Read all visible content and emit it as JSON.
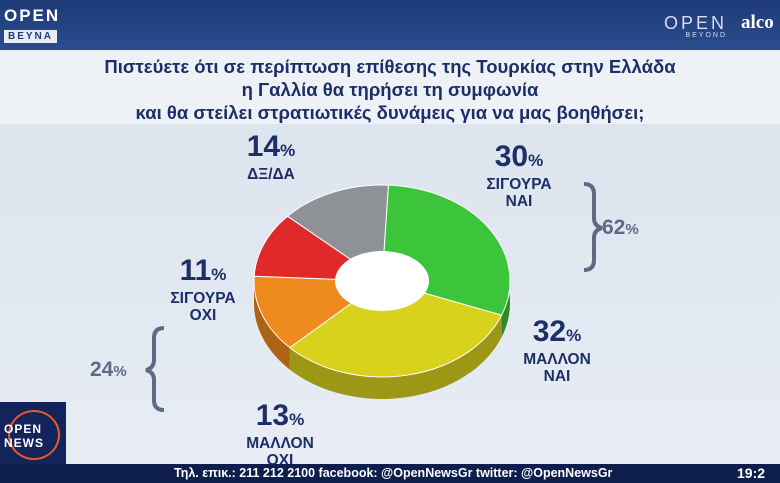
{
  "header": {
    "logo_left": {
      "word": "OPEN",
      "sub": "BEYNA"
    },
    "logo_right": {
      "word": "OPEN",
      "sub": "BEYOND"
    },
    "sponsor": "alco"
  },
  "question": {
    "line1": "Πιστεύετε ότι σε περίπτωση επίθεσης της Τουρκίας στην Ελλάδα",
    "line2": "η Γαλλία θα τηρήσει τη συμφωνία",
    "line3": "και θα στείλει στρατιωτικές δυνάμεις για να μας βοηθήσει;"
  },
  "chart_data": {
    "type": "pie",
    "title": "",
    "unit": "%",
    "slices": [
      {
        "label": "ΣΙΓΟΥΡΑ ΝΑΙ",
        "line1": "ΣΙΓΟΥΡΑ",
        "line2": "ΝΑΙ",
        "value": 30,
        "color": "#3cc43a"
      },
      {
        "label": "ΜΑΛΛΟΝ ΝΑΙ",
        "line1": "ΜΑΛΛΟΝ",
        "line2": "ΝΑΙ",
        "value": 32,
        "color": "#d9d21c"
      },
      {
        "label": "ΜΑΛΛΟΝ ΟΧΙ",
        "line1": "ΜΑΛΛΟΝ",
        "line2": "ΟΧΙ",
        "value": 13,
        "color": "#ef8a1e"
      },
      {
        "label": "ΣΙΓΟΥΡΑ ΟΧΙ",
        "line1": "ΣΙΓΟΥΡΑ",
        "line2": "ΟΧΙ",
        "value": 11,
        "color": "#e02a2a"
      },
      {
        "label": "ΔΞ/ΔΑ",
        "line1": "ΔΞ/ΔΑ",
        "line2": "",
        "value": 14,
        "color": "#8e9296"
      }
    ],
    "groups": [
      {
        "value": 62,
        "covers": [
          "ΣΙΓΟΥΡΑ ΝΑΙ",
          "ΜΑΛΛΟΝ ΝΑΙ"
        ]
      },
      {
        "value": 24,
        "covers": [
          "ΜΑΛΛΟΝ ΟΧΙ",
          "ΣΙΓΟΥΡΑ ΟΧΙ"
        ]
      }
    ]
  },
  "ticker": {
    "text": "Τηλ. επικ.: 211 212 2100 facebook: @OpenNewsGr twitter: @OpenNewsGr",
    "clock": "19:2",
    "logo_line1": "OPEN",
    "logo_line2": "NEWS"
  }
}
